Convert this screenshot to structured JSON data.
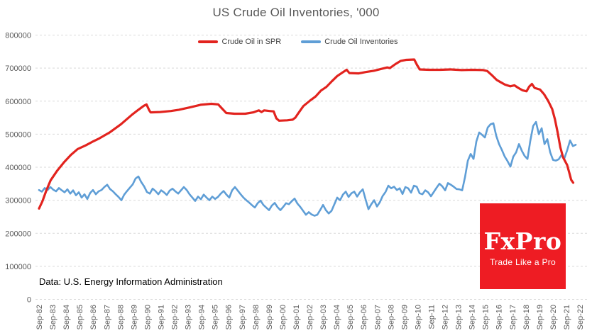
{
  "header": {
    "title": "US Crude Oil Inventories, '000"
  },
  "footer": {
    "source_note": "Data: U.S. Energy Information Administration"
  },
  "logo": {
    "brand": "FxPro",
    "tagline": "Trade Like a Pro",
    "bg_color": "#ee1c23"
  },
  "colors": {
    "spr_red": "#e2231e",
    "inventories_blue": "#5f9ed6",
    "grid": "#d9d9d9",
    "axis_text": "#595959"
  },
  "chart_data": {
    "type": "line",
    "title": "US Crude Oil Inventories, '000",
    "xlabel": "",
    "ylabel": "",
    "ylim": [
      0,
      800000
    ],
    "yticks": [
      0,
      100000,
      200000,
      300000,
      400000,
      500000,
      600000,
      700000,
      800000
    ],
    "grid": "horizontal-dashed",
    "legend_position": "top",
    "xticks": [
      "Sep-82",
      "Sep-83",
      "Sep-84",
      "Sep-85",
      "Sep-86",
      "Sep-87",
      "Sep-88",
      "Sep-89",
      "Sep-90",
      "Sep-91",
      "Sep-92",
      "Sep-93",
      "Sep-94",
      "Sep-95",
      "Sep-96",
      "Sep-97",
      "Sep-98",
      "Sep-99",
      "Sep-00",
      "Sep-01",
      "Sep-02",
      "Sep-03",
      "Sep-04",
      "Sep-05",
      "Sep-06",
      "Sep-07",
      "Sep-08",
      "Sep-09",
      "Sep-10",
      "Sep-11",
      "Sep-12",
      "Sep-13",
      "Sep-14",
      "Sep-15",
      "Sep-16",
      "Sep-17",
      "Sep-18",
      "Sep-19",
      "Sep-20",
      "Sep-21",
      "Sep-22"
    ],
    "x_first_tick_year": 1982.75,
    "series": [
      {
        "name": "Crude Oil in SPR",
        "color": "#e2231e",
        "points": [
          [
            1982.75,
            275000
          ],
          [
            1983.0,
            297000
          ],
          [
            1983.3,
            331000
          ],
          [
            1983.6,
            360000
          ],
          [
            1984.1,
            390000
          ],
          [
            1984.6,
            415000
          ],
          [
            1985.1,
            437000
          ],
          [
            1985.6,
            455000
          ],
          [
            1986.2,
            466000
          ],
          [
            1986.7,
            477000
          ],
          [
            1987.2,
            487000
          ],
          [
            1988.0,
            506000
          ],
          [
            1988.8,
            530000
          ],
          [
            1989.6,
            558000
          ],
          [
            1990.1,
            574000
          ],
          [
            1990.5,
            586000
          ],
          [
            1990.7,
            590000
          ],
          [
            1990.9,
            572000
          ],
          [
            1991.0,
            566000
          ],
          [
            1991.7,
            567000
          ],
          [
            1992.5,
            570000
          ],
          [
            1993.1,
            574000
          ],
          [
            1993.9,
            581000
          ],
          [
            1994.7,
            589000
          ],
          [
            1995.5,
            592000
          ],
          [
            1996.0,
            590000
          ],
          [
            1996.3,
            577000
          ],
          [
            1996.6,
            564000
          ],
          [
            1997.2,
            562000
          ],
          [
            1998.0,
            562000
          ],
          [
            1998.6,
            566000
          ],
          [
            1999.0,
            572000
          ],
          [
            1999.2,
            567000
          ],
          [
            1999.4,
            572000
          ],
          [
            1999.8,
            570000
          ],
          [
            2000.1,
            569000
          ],
          [
            2000.3,
            548000
          ],
          [
            2000.5,
            541000
          ],
          [
            2001.1,
            542000
          ],
          [
            2001.5,
            544000
          ],
          [
            2001.7,
            550000
          ],
          [
            2001.9,
            562000
          ],
          [
            2002.3,
            585000
          ],
          [
            2002.8,
            602000
          ],
          [
            2003.2,
            614000
          ],
          [
            2003.6,
            632000
          ],
          [
            2004.0,
            643000
          ],
          [
            2004.4,
            660000
          ],
          [
            2004.8,
            676000
          ],
          [
            2005.2,
            687000
          ],
          [
            2005.5,
            695000
          ],
          [
            2005.7,
            685000
          ],
          [
            2006.4,
            684000
          ],
          [
            2006.9,
            688000
          ],
          [
            2007.5,
            692000
          ],
          [
            2008.1,
            698000
          ],
          [
            2008.5,
            702000
          ],
          [
            2008.7,
            700000
          ],
          [
            2009.1,
            712000
          ],
          [
            2009.5,
            722000
          ],
          [
            2009.9,
            725000
          ],
          [
            2010.5,
            726000
          ],
          [
            2010.7,
            710000
          ],
          [
            2010.9,
            696000
          ],
          [
            2011.6,
            695000
          ],
          [
            2012.4,
            695000
          ],
          [
            2013.2,
            696000
          ],
          [
            2014.0,
            694000
          ],
          [
            2014.8,
            695000
          ],
          [
            2015.6,
            694000
          ],
          [
            2015.9,
            691000
          ],
          [
            2016.2,
            680000
          ],
          [
            2016.6,
            664000
          ],
          [
            2016.9,
            657000
          ],
          [
            2017.2,
            650000
          ],
          [
            2017.6,
            645000
          ],
          [
            2017.9,
            648000
          ],
          [
            2018.2,
            640000
          ],
          [
            2018.5,
            633000
          ],
          [
            2018.8,
            630000
          ],
          [
            2019.0,
            644000
          ],
          [
            2019.2,
            652000
          ],
          [
            2019.4,
            640000
          ],
          [
            2019.8,
            635000
          ],
          [
            2020.1,
            621000
          ],
          [
            2020.4,
            601000
          ],
          [
            2020.7,
            576000
          ],
          [
            2020.9,
            545000
          ],
          [
            2021.1,
            505000
          ],
          [
            2021.3,
            460000
          ],
          [
            2021.5,
            430000
          ],
          [
            2021.8,
            407000
          ],
          [
            2022.0,
            378000
          ],
          [
            2022.1,
            362000
          ],
          [
            2022.25,
            353000
          ]
        ]
      },
      {
        "name": "Crude Oil Inventories",
        "color": "#5f9ed6",
        "x_start": 1982.75,
        "x_step": 0.21,
        "values": [
          331000,
          326000,
          337000,
          331000,
          340000,
          332000,
          327000,
          337000,
          330000,
          324000,
          333000,
          320000,
          330000,
          315000,
          324000,
          308000,
          318000,
          304000,
          322000,
          331000,
          318000,
          327000,
          331000,
          340000,
          347000,
          334000,
          327000,
          318000,
          310000,
          300000,
          317000,
          328000,
          338000,
          348000,
          366000,
          372000,
          355000,
          342000,
          325000,
          320000,
          335000,
          328000,
          318000,
          330000,
          324000,
          316000,
          329000,
          335000,
          327000,
          320000,
          330000,
          340000,
          331000,
          318000,
          308000,
          298000,
          311000,
          303000,
          317000,
          308000,
          300000,
          311000,
          304000,
          310000,
          320000,
          328000,
          317000,
          308000,
          330000,
          340000,
          329000,
          318000,
          308000,
          300000,
          293000,
          285000,
          278000,
          291000,
          299000,
          286000,
          278000,
          270000,
          284000,
          292000,
          279000,
          270000,
          280000,
          291000,
          288000,
          297000,
          305000,
          290000,
          280000,
          268000,
          256000,
          264000,
          257000,
          253000,
          256000,
          270000,
          286000,
          270000,
          260000,
          268000,
          288000,
          308000,
          300000,
          317000,
          326000,
          310000,
          321000,
          326000,
          311000,
          324000,
          333000,
          302000,
          273000,
          288000,
          300000,
          281000,
          294000,
          313000,
          325000,
          344000,
          336000,
          341000,
          331000,
          336000,
          319000,
          340000,
          336000,
          323000,
          344000,
          341000,
          321000,
          318000,
          330000,
          324000,
          312000,
          325000,
          338000,
          350000,
          342000,
          330000,
          352000,
          347000,
          341000,
          334000,
          333000,
          330000,
          370000,
          420000,
          440000,
          425000,
          478000,
          505000,
          498000,
          490000,
          520000,
          530000,
          533000,
          495000,
          470000,
          452000,
          432000,
          418000,
          402000,
          432000,
          445000,
          470000,
          450000,
          434000,
          425000,
          480000,
          525000,
          537000,
          500000,
          518000,
          470000,
          485000,
          445000,
          422000,
          420000,
          424000,
          437000,
          427000,
          452000,
          481000,
          464000,
          468000
        ]
      }
    ]
  }
}
